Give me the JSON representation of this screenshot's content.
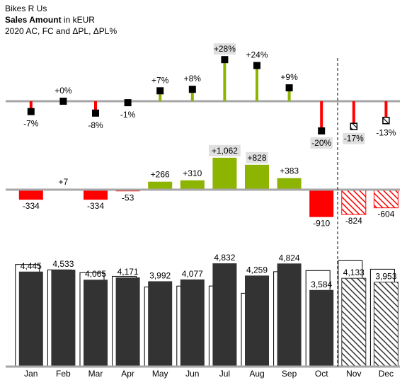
{
  "header": {
    "company": "Bikes R Us",
    "measure": "Sales Amount",
    "unit": "in kEUR",
    "subtitle": "2020 AC, FC and ΔPL, ΔPL%"
  },
  "colors": {
    "actual": "#333333",
    "positive": "#8cb400",
    "negative": "#ff0000",
    "baseline": "#a6a6a6",
    "highlight": "#e0e0e0"
  },
  "chart_data": [
    {
      "type": "bar",
      "name_role": "pin-chart-relative-variance",
      "categories": [
        "Jan",
        "Feb",
        "Mar",
        "Apr",
        "May",
        "Jun",
        "Jul",
        "Aug",
        "Sep",
        "Oct",
        "Nov",
        "Dec"
      ],
      "values": [
        -7,
        0,
        -8,
        -1,
        7,
        8,
        28,
        24,
        9,
        -20,
        -17,
        -13
      ],
      "labels": [
        "-7%",
        "+0%",
        "-8%",
        "-1%",
        "+7%",
        "+8%",
        "+28%",
        "+24%",
        "+9%",
        "-20%",
        "-17%",
        "-13%"
      ],
      "highlighted": [
        "Jul",
        "Oct",
        "Nov"
      ],
      "forecast": [
        "Nov",
        "Dec"
      ]
    },
    {
      "type": "bar",
      "name_role": "absolute-variance",
      "categories": [
        "Jan",
        "Feb",
        "Mar",
        "Apr",
        "May",
        "Jun",
        "Jul",
        "Aug",
        "Sep",
        "Oct",
        "Nov",
        "Dec"
      ],
      "values": [
        -334,
        7,
        -334,
        -53,
        266,
        310,
        1062,
        828,
        383,
        -910,
        -824,
        -604
      ],
      "labels": [
        "-334",
        "+7",
        "-334",
        "-53",
        "+266",
        "+310",
        "+1,062",
        "+828",
        "+383",
        "-910",
        "-824",
        "-604"
      ],
      "highlighted": [
        "Jul",
        "Aug"
      ],
      "forecast": [
        "Nov",
        "Dec"
      ]
    },
    {
      "type": "bar",
      "name_role": "actual-vs-plan",
      "categories": [
        "Jan",
        "Feb",
        "Mar",
        "Apr",
        "May",
        "Jun",
        "Jul",
        "Aug",
        "Sep",
        "Oct",
        "Nov",
        "Dec"
      ],
      "values": [
        4445,
        4533,
        4065,
        4171,
        3992,
        4077,
        4832,
        4259,
        4824,
        3584,
        4133,
        3953
      ],
      "labels": [
        "4,445",
        "4,533",
        "4,065",
        "4,171",
        "3,992",
        "4,077",
        "4,832",
        "4,259",
        "4,824",
        "3,584",
        "4,133",
        "3,953"
      ],
      "plan": [
        4779,
        4526,
        4399,
        4224,
        3726,
        3767,
        3770,
        3431,
        4441,
        4494,
        4957,
        4557
      ],
      "forecast": [
        "Nov",
        "Dec"
      ]
    }
  ]
}
